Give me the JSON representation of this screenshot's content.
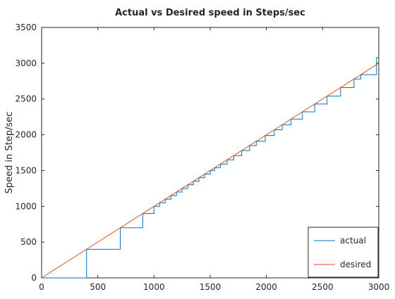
{
  "chart_data": {
    "type": "line",
    "title": "Actual vs Desired speed in Steps/sec",
    "xlabel": "",
    "ylabel": "Speed in Step/sec",
    "xlim": [
      0,
      3000
    ],
    "ylim": [
      0,
      3500
    ],
    "xticks": [
      0,
      500,
      1000,
      1500,
      2000,
      2500,
      3000
    ],
    "yticks": [
      0,
      500,
      1000,
      1500,
      2000,
      2500,
      3000,
      3500
    ],
    "grid": false,
    "legend_position": "bottom-right",
    "series": [
      {
        "name": "actual",
        "color": "#0072bd",
        "style": "staircase",
        "points": [
          [
            0,
            0
          ],
          [
            400,
            400
          ],
          [
            700,
            700
          ],
          [
            900,
            900
          ],
          [
            1000,
            1000
          ],
          [
            1050,
            1050
          ],
          [
            1100,
            1100
          ],
          [
            1150,
            1150
          ],
          [
            1200,
            1200
          ],
          [
            1250,
            1250
          ],
          [
            1300,
            1300
          ],
          [
            1350,
            1350
          ],
          [
            1400,
            1400
          ],
          [
            1450,
            1450
          ],
          [
            1500,
            1500
          ],
          [
            1540,
            1540
          ],
          [
            1590,
            1590
          ],
          [
            1650,
            1650
          ],
          [
            1710,
            1710
          ],
          [
            1780,
            1780
          ],
          [
            1850,
            1850
          ],
          [
            1910,
            1910
          ],
          [
            1990,
            1990
          ],
          [
            2070,
            2070
          ],
          [
            2140,
            2140
          ],
          [
            2220,
            2220
          ],
          [
            2320,
            2320
          ],
          [
            2430,
            2430
          ],
          [
            2540,
            2540
          ],
          [
            2660,
            2660
          ],
          [
            2780,
            2780
          ],
          [
            2840,
            2840
          ],
          [
            2980,
            2980
          ],
          [
            2980,
            3080
          ],
          [
            3000,
            3080
          ]
        ]
      },
      {
        "name": "desired",
        "color": "#d95319",
        "style": "line",
        "points": [
          [
            0,
            0
          ],
          [
            3000,
            3000
          ]
        ]
      }
    ]
  }
}
